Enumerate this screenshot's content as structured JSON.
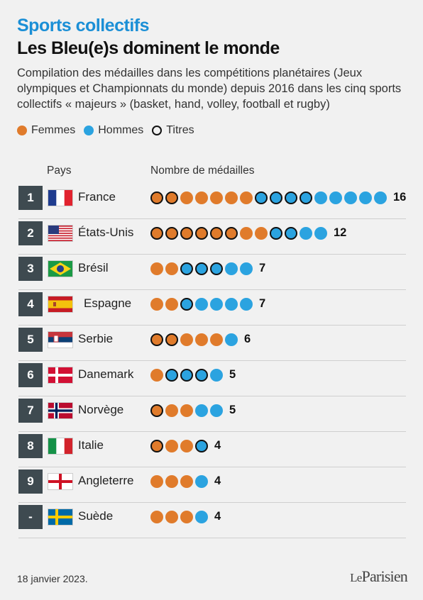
{
  "header": {
    "kicker": "Sports collectifs",
    "title": "Les Bleu(e)s dominent le monde",
    "subtitle": "Compilation des médailles dans les compétitions planétaires (Jeux olympiques et Championnats du monde) depuis 2016 dans les cinq sports collectifs « majeurs » (basket, hand, volley, football et rugby)"
  },
  "legend": {
    "women": "Femmes",
    "men": "Hommes",
    "titles": "Titres"
  },
  "columns": {
    "country": "Pays",
    "medals": "Nombre de médailles"
  },
  "colors": {
    "women": "#e07b2b",
    "men": "#2ba3e0",
    "rank_bg": "#3e4a50",
    "kicker": "#1b8fd6"
  },
  "chart_data": {
    "type": "table",
    "title": "Les Bleu(e)s dominent le monde",
    "rows": [
      {
        "rank": "1",
        "country": "France",
        "flag": "france-flag",
        "women": 7,
        "women_titles": 2,
        "men": 9,
        "men_titles": 4,
        "total": 16
      },
      {
        "rank": "2",
        "country": "États-Unis",
        "flag": "usa-flag",
        "women": 8,
        "women_titles": 6,
        "men": 4,
        "men_titles": 2,
        "total": 12
      },
      {
        "rank": "3",
        "country": "Brésil",
        "flag": "brazil-flag",
        "women": 2,
        "women_titles": 0,
        "men": 5,
        "men_titles": 3,
        "total": 7
      },
      {
        "rank": "4",
        "country": "Espagne",
        "flag": "spain-flag",
        "women": 2,
        "women_titles": 0,
        "men": 5,
        "men_titles": 1,
        "total": 7
      },
      {
        "rank": "5",
        "country": "Serbie",
        "flag": "serbia-flag",
        "women": 5,
        "women_titles": 2,
        "men": 1,
        "men_titles": 0,
        "total": 6
      },
      {
        "rank": "6",
        "country": "Danemark",
        "flag": "denmark-flag",
        "women": 1,
        "women_titles": 0,
        "men": 4,
        "men_titles": 3,
        "total": 5
      },
      {
        "rank": "7",
        "country": "Norvège",
        "flag": "norway-flag",
        "women": 3,
        "women_titles": 1,
        "men": 2,
        "men_titles": 0,
        "total": 5
      },
      {
        "rank": "8",
        "country": "Italie",
        "flag": "italy-flag",
        "women": 3,
        "women_titles": 1,
        "men": 1,
        "men_titles": 1,
        "total": 4
      },
      {
        "rank": "9",
        "country": "Angleterre",
        "flag": "england-flag",
        "women": 3,
        "women_titles": 0,
        "men": 1,
        "men_titles": 0,
        "total": 4
      },
      {
        "rank": "-",
        "country": "Suède",
        "flag": "sweden-flag",
        "women": 3,
        "women_titles": 0,
        "men": 1,
        "men_titles": 0,
        "total": 4
      }
    ]
  },
  "footer": {
    "date": "18 janvier 2023.",
    "logo_le": "Le",
    "logo_name": "Parisien"
  }
}
